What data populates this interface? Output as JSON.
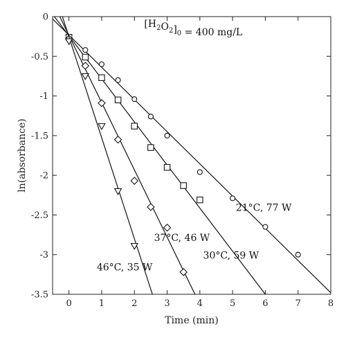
{
  "chart_data": {
    "type": "scatter",
    "title": "",
    "xlabel": "Time (min)",
    "ylabel": "ln(absorbance)",
    "xlim": [
      -0.5,
      8
    ],
    "ylim": [
      -3.5,
      0
    ],
    "xticks": [
      0,
      1,
      2,
      3,
      4,
      5,
      6,
      7,
      8
    ],
    "yticks": [
      0,
      -0.5,
      -1,
      -1.5,
      -2,
      -2.5,
      -3,
      -3.5
    ],
    "xtick_labels": [
      "0",
      "1",
      "2",
      "3",
      "4",
      "5",
      "6",
      "7",
      "8"
    ],
    "ytick_labels": [
      "0",
      "-0.5",
      "-1",
      "-1.5",
      "-2",
      "-2.5",
      "-3",
      "-3.5"
    ],
    "grid": false,
    "annotations": [
      {
        "text": "[H2O2]0 = 400 mg/L",
        "parts": [
          {
            "t": "[H"
          },
          {
            "t": "2",
            "sub": true
          },
          {
            "t": "O"
          },
          {
            "t": "2",
            "sub": true
          },
          {
            "t": "]"
          },
          {
            "t": "0",
            "sub": true
          },
          {
            "t": " = 400 mg/L"
          }
        ],
        "at": [
          2.3,
          -0.13
        ]
      }
    ],
    "series": [
      {
        "label": "21°C, 77 W",
        "marker": "circle",
        "label_at": [
          5.1,
          -2.45
        ],
        "x": [
          0,
          0.5,
          1,
          1.5,
          2,
          2.5,
          3,
          4,
          5,
          6,
          7
        ],
        "y": [
          -0.27,
          -0.42,
          -0.6,
          -0.8,
          -1.04,
          -1.26,
          -1.5,
          -1.96,
          -2.29,
          -2.65,
          -3.0
        ],
        "fit": {
          "x0": -0.5,
          "y0": -0.03,
          "x1": 8,
          "y1": -3.48
        }
      },
      {
        "label": "30°C, 59 W",
        "marker": "square",
        "label_at": [
          4.1,
          -3.05
        ],
        "x": [
          0,
          0.5,
          1,
          1.5,
          2,
          2.5,
          3,
          3.5,
          4
        ],
        "y": [
          -0.26,
          -0.51,
          -0.77,
          -1.05,
          -1.38,
          -1.65,
          -1.9,
          -2.13,
          -2.31
        ],
        "fit": {
          "x0": -0.5,
          "y0": 0.03,
          "x1": 6.0,
          "y1": -3.5
        }
      },
      {
        "label": "37°C, 46 W",
        "marker": "diamond",
        "label_at": [
          2.6,
          -2.83
        ],
        "x": [
          0,
          0.5,
          1,
          1.5,
          2,
          2.5,
          3,
          3.5
        ],
        "y": [
          -0.28,
          -0.62,
          -1.09,
          -1.55,
          -2.07,
          -2.4,
          -2.66,
          -3.22
        ],
        "fit": {
          "x0": -0.28,
          "y0": 0.0,
          "x1": 3.85,
          "y1": -3.5
        }
      },
      {
        "label": "46°C, 35 W",
        "marker": "triangle-down",
        "label_at": [
          0.85,
          -3.2
        ],
        "x": [
          0,
          0.5,
          1,
          1.5,
          2
        ],
        "y": [
          -0.31,
          -0.75,
          -1.38,
          -2.2,
          -2.89
        ],
        "fit": {
          "x0": -0.2,
          "y0": 0.0,
          "x1": 2.55,
          "y1": -3.5
        }
      }
    ]
  }
}
